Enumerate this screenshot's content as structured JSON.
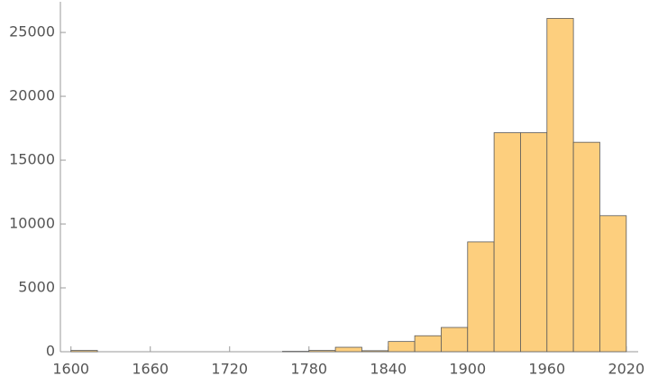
{
  "chart_data": {
    "type": "histogram",
    "bins": [
      1600,
      1620,
      1640,
      1660,
      1680,
      1700,
      1720,
      1740,
      1760,
      1780,
      1800,
      1820,
      1840,
      1860,
      1880,
      1900,
      1920,
      1940,
      1960,
      1980,
      2000,
      2020
    ],
    "values": [
      100,
      0,
      0,
      0,
      0,
      0,
      0,
      0,
      30,
      100,
      350,
      80,
      800,
      1250,
      1900,
      8600,
      17150,
      17150,
      26100,
      16400,
      10650
    ],
    "color": "#fdcf7e",
    "xlim": [
      1592,
      2029
    ],
    "ylim": [
      0,
      27400
    ],
    "xticks": [
      1600,
      1660,
      1720,
      1780,
      1840,
      1900,
      1960,
      2020
    ],
    "yticks": [
      0,
      5000,
      10000,
      15000,
      20000,
      25000
    ]
  }
}
